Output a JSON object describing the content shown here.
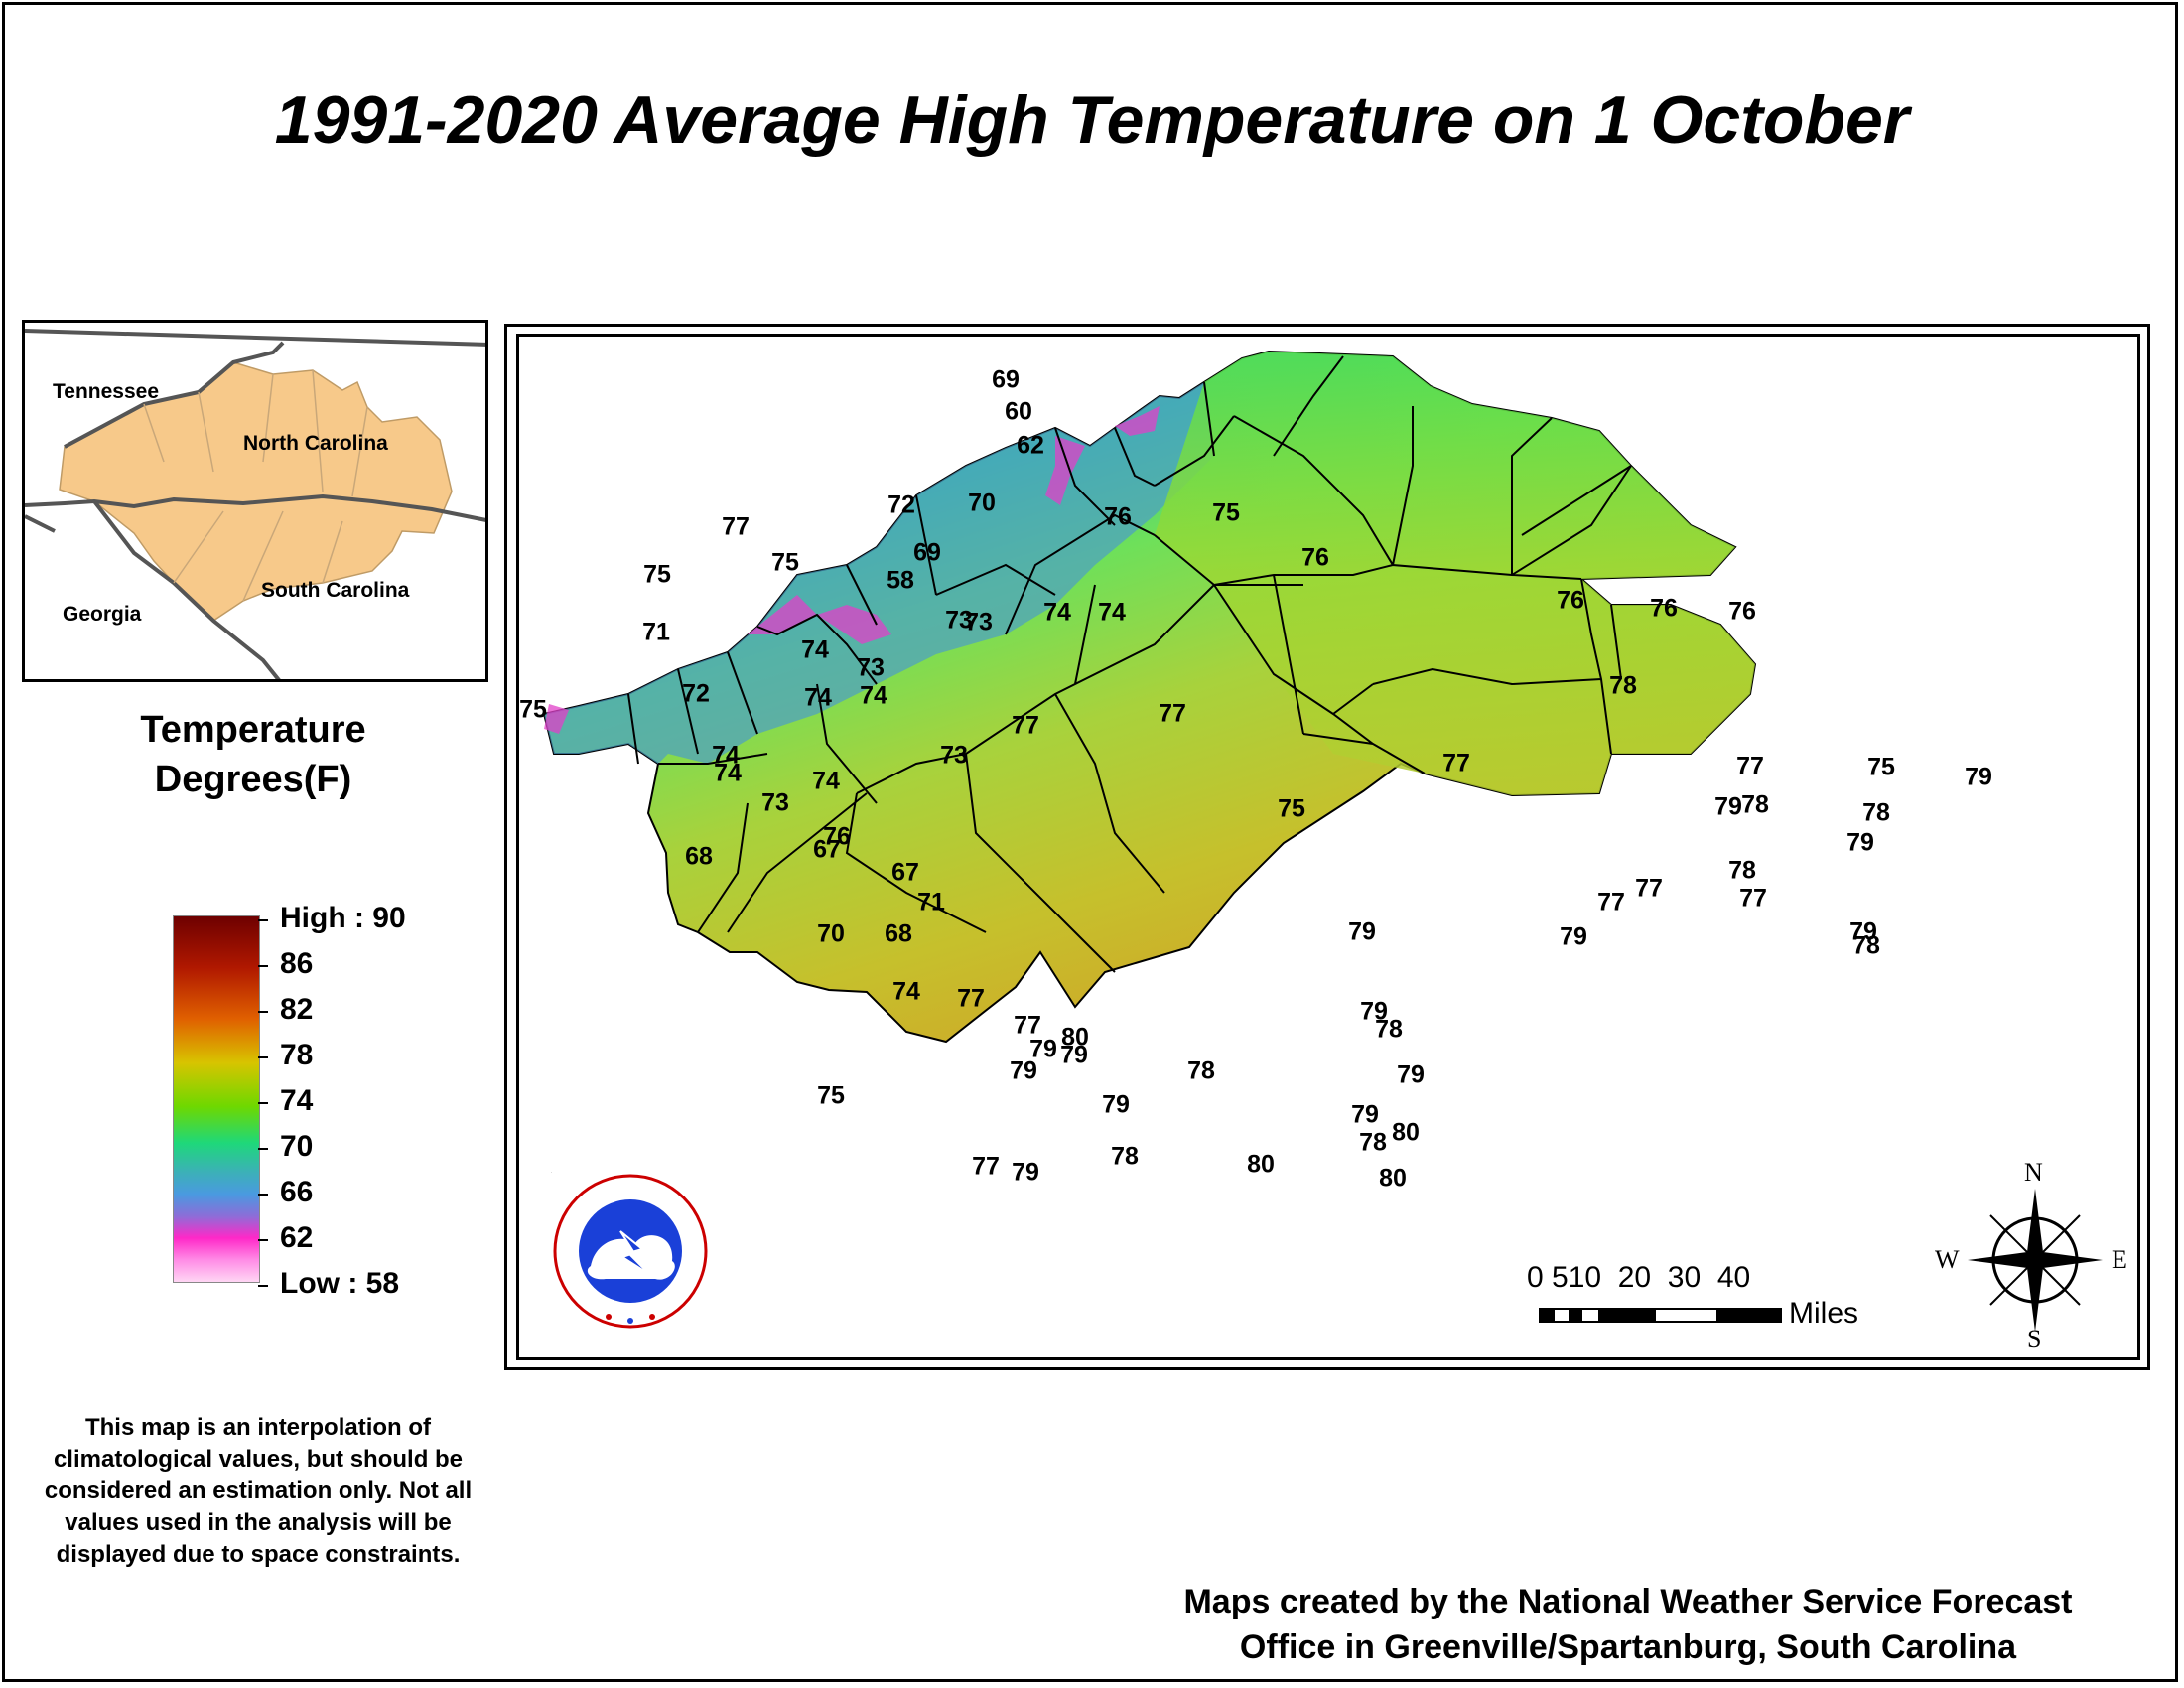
{
  "title": "1991-2020 Average High Temperature on 1 October",
  "inset": {
    "labels": [
      "Tennessee",
      "North Carolina",
      "Georgia",
      "South Carolina"
    ],
    "fill_color": "#f7c98a"
  },
  "legend": {
    "title_line1": "Temperature",
    "title_line2": "Degrees(F)",
    "labels": [
      "High : 90",
      "86",
      "82",
      "78",
      "74",
      "70",
      "66",
      "62",
      "Low : 58"
    ]
  },
  "disclaimer": "This map is an interpolation of climatological values, but should be considered an estimation only. Not all values used in the analysis will be displayed due to space constraints.",
  "credit_line1": "Maps created by the National Weather Service Forecast",
  "credit_line2": "Office in Greenville/Spartanburg, South Carolina",
  "scale": {
    "numbers": "0 510  20  30  40",
    "unit": "Miles"
  },
  "compass": {
    "n": "N",
    "s": "S",
    "e": "E",
    "w": "W"
  },
  "logo_text": "NATIONAL WEATHER SERVICE",
  "station_values": [
    "69",
    "60",
    "62",
    "72",
    "70",
    "69",
    "58",
    "77",
    "75",
    "76",
    "75",
    "76",
    "75",
    "71",
    "73",
    "74",
    "74",
    "76",
    "76",
    "76",
    "72",
    "74",
    "73",
    "73",
    "77",
    "78",
    "75",
    "74",
    "74",
    "74",
    "77",
    "77",
    "79",
    "79",
    "75",
    "79",
    "73",
    "74",
    "73",
    "78",
    "74",
    "68",
    "67",
    "76",
    "67",
    "75",
    "77",
    "78",
    "71",
    "77",
    "77",
    "70",
    "68",
    "78",
    "79",
    "78",
    "79",
    "77",
    "79",
    "74",
    "77",
    "77",
    "80",
    "79",
    "78",
    "78",
    "79",
    "79",
    "79",
    "79",
    "75",
    "79",
    "80",
    "78",
    "77",
    "79",
    "79",
    "80",
    "78",
    "80"
  ]
}
